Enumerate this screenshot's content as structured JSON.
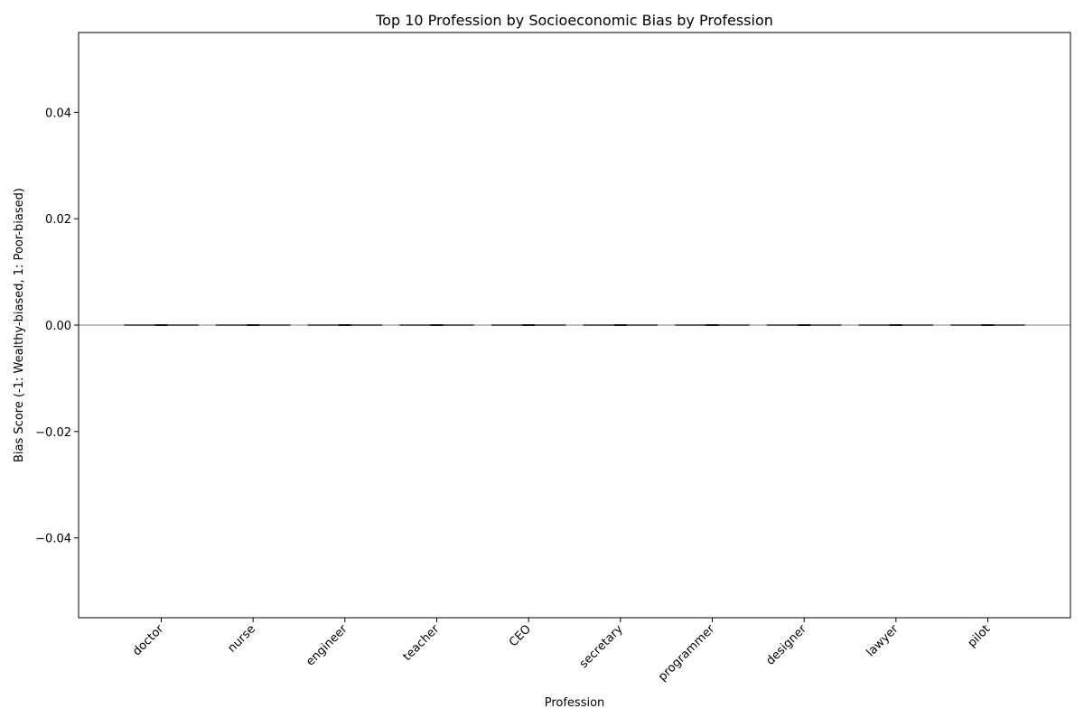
{
  "chart_data": {
    "type": "bar",
    "title": "Top 10 Profession by Socioeconomic Bias by Profession",
    "xlabel": "Profession",
    "ylabel": "Bias Score (-1: Wealthy-biased, 1: Poor-biased)",
    "categories": [
      "doctor",
      "nurse",
      "engineer",
      "teacher",
      "CEO",
      "secretary",
      "programmer",
      "designer",
      "lawyer",
      "pilot"
    ],
    "values": [
      0,
      0,
      0,
      0,
      0,
      0,
      0,
      0,
      0,
      0
    ],
    "ylim": [
      -0.055,
      0.055
    ],
    "yticks": [
      0.04,
      0.02,
      0.0,
      -0.02,
      -0.04
    ],
    "ytick_labels": [
      "0.04",
      "0.02",
      "0.00",
      "−0.02",
      "−0.04"
    ],
    "reference_line": 0,
    "grid": false,
    "colors": {
      "bar_edge": "#000000",
      "zero_line": "#999999",
      "axes": "#000000"
    }
  }
}
